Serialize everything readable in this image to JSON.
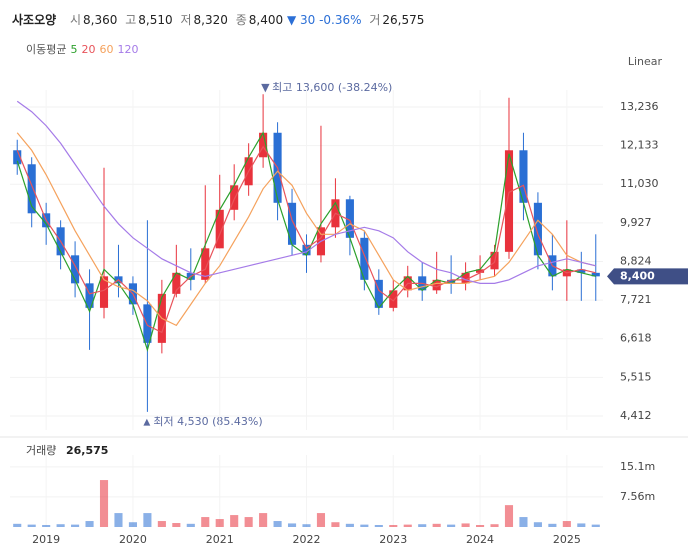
{
  "chart_data": {
    "type": "candlestick",
    "quote": {
      "name": "사조오양",
      "fields": [
        {
          "label": "시",
          "value": "8,360"
        },
        {
          "label": "고",
          "value": "8,510"
        },
        {
          "label": "저",
          "value": "8,320"
        },
        {
          "label": "종",
          "value": "8,400"
        }
      ],
      "change": "▼ 30",
      "change_pct": "-0.36%",
      "volume_label": "거",
      "volume": "26,575"
    },
    "ma_title": "이동평균",
    "scale_label": "Linear",
    "categories": [
      null,
      null,
      "2019",
      null,
      null,
      null,
      null,
      null,
      "2020",
      null,
      null,
      null,
      null,
      null,
      "2021",
      null,
      null,
      null,
      null,
      null,
      "2022",
      null,
      null,
      null,
      null,
      null,
      "2023",
      null,
      null,
      null,
      null,
      null,
      "2024",
      null,
      null,
      null,
      null,
      null,
      "2025",
      null,
      null
    ],
    "open": [
      12000,
      11600,
      10200,
      9800,
      9000,
      8200,
      7500,
      8400,
      8200,
      7600,
      6500,
      7900,
      8500,
      8300,
      9200,
      10300,
      11000,
      11800,
      12500,
      10500,
      9300,
      9000,
      9800,
      10600,
      9500,
      8300,
      7500,
      8000,
      8400,
      8000,
      8300,
      8200,
      8500,
      8600,
      9100,
      12000,
      10500,
      9000,
      8400,
      8600,
      8500
    ],
    "high": [
      12300,
      11800,
      10500,
      10000,
      9400,
      8600,
      11500,
      9300,
      8400,
      10000,
      8300,
      9300,
      9200,
      11000,
      11300,
      11600,
      12200,
      13600,
      12800,
      10900,
      9600,
      12700,
      11200,
      10700,
      9700,
      8600,
      8300,
      8700,
      8800,
      9100,
      9000,
      8800,
      9000,
      9300,
      13500,
      12500,
      10800,
      9600,
      10000,
      9100,
      9600
    ],
    "low": [
      11300,
      9800,
      9300,
      8600,
      7800,
      6300,
      7200,
      7800,
      7300,
      4530,
      6200,
      7800,
      8000,
      8200,
      9200,
      10000,
      10700,
      11500,
      10000,
      9000,
      8500,
      8800,
      9500,
      9000,
      8000,
      7300,
      7400,
      7800,
      7700,
      7900,
      7900,
      8000,
      8300,
      8400,
      8900,
      10000,
      8600,
      8000,
      7700,
      7700,
      7700
    ],
    "close": [
      11600,
      10200,
      9800,
      9000,
      8200,
      7500,
      8400,
      8200,
      7600,
      6500,
      7900,
      8500,
      8300,
      9200,
      10300,
      11000,
      11800,
      12500,
      10500,
      9300,
      9000,
      9800,
      10600,
      9500,
      8300,
      7500,
      8000,
      8400,
      8000,
      8300,
      8200,
      8500,
      8600,
      9100,
      12000,
      10500,
      9000,
      8400,
      8600,
      8500,
      8400
    ],
    "up_color": "#e8323c",
    "down_color": "#2a6fd4",
    "series": [
      {
        "name": "5",
        "color": "#2ca02c",
        "values": [
          11700,
          10400,
          9900,
          9100,
          8300,
          7400,
          8600,
          8200,
          7600,
          6300,
          7800,
          8500,
          8300,
          9300,
          10300,
          11000,
          11800,
          12500,
          10600,
          9300,
          9000,
          9900,
          10500,
          9500,
          8300,
          7500,
          8000,
          8400,
          8000,
          8300,
          8200,
          8500,
          8600,
          9100,
          11900,
          10500,
          9000,
          8400,
          8600,
          8500,
          8400
        ]
      },
      {
        "name": "20",
        "color": "#e8535a",
        "values": [
          12000,
          11000,
          10000,
          9400,
          8700,
          7900,
          8000,
          8300,
          7900,
          7000,
          6800,
          8000,
          8400,
          8600,
          9600,
          10600,
          11400,
          12100,
          11500,
          10000,
          9200,
          9500,
          10200,
          10000,
          9000,
          8000,
          7700,
          8200,
          8200,
          8100,
          8300,
          8300,
          8500,
          8800,
          10800,
          11000,
          9600,
          8700,
          8500,
          8600,
          8500
        ]
      },
      {
        "name": "60",
        "color": "#f5a25d",
        "values": [
          12500,
          12000,
          11300,
          10500,
          9700,
          9000,
          8300,
          8100,
          8000,
          7700,
          7200,
          7000,
          7600,
          8200,
          8700,
          9400,
          10100,
          10900,
          11400,
          11000,
          10200,
          9600,
          9600,
          9900,
          9700,
          9000,
          8300,
          8000,
          8100,
          8200,
          8200,
          8200,
          8300,
          8400,
          8800,
          9400,
          10000,
          9600,
          9000,
          8800,
          8700
        ]
      },
      {
        "name": "120",
        "color": "#a57be8",
        "values": [
          13400,
          13100,
          12700,
          12200,
          11600,
          11000,
          10400,
          9900,
          9500,
          9200,
          8900,
          8700,
          8500,
          8400,
          8500,
          8600,
          8700,
          8800,
          8900,
          9000,
          9100,
          9400,
          9600,
          9700,
          9800,
          9700,
          9500,
          9100,
          8800,
          8600,
          8500,
          8300,
          8200,
          8200,
          8300,
          8500,
          8700,
          8800,
          8900,
          8800,
          8700
        ]
      }
    ],
    "ylim": [
      4012,
      13721
    ],
    "yticks": [
      {
        "value": 4412,
        "label": "4,412"
      },
      {
        "value": 5515,
        "label": "5,515"
      },
      {
        "value": 6618,
        "label": "6,618"
      },
      {
        "value": 7721,
        "label": "7,721"
      },
      {
        "value": 8824,
        "label": "8,824"
      },
      {
        "value": 9927,
        "label": "9,927"
      },
      {
        "value": 11030,
        "label": "11,030"
      },
      {
        "value": 12133,
        "label": "12,133"
      },
      {
        "value": 13236,
        "label": "13,236"
      }
    ],
    "grid": true,
    "last_price": {
      "value": 8400,
      "label": "8,400"
    },
    "annotations": {
      "high": "최고 13,600 (-38.24%)",
      "low": "최저 4,530 (85.43%)"
    },
    "volume": {
      "label": "거래량",
      "value_text": "26,575",
      "values": [
        800000,
        600000,
        500000,
        700000,
        600000,
        1500000,
        11800000,
        3500000,
        1200000,
        3500000,
        1500000,
        1000000,
        800000,
        2500000,
        2000000,
        3000000,
        2500000,
        3500000,
        1500000,
        900000,
        700000,
        3500000,
        1200000,
        800000,
        600000,
        500000,
        500000,
        600000,
        700000,
        800000,
        600000,
        900000,
        500000,
        700000,
        5500000,
        2500000,
        1200000,
        800000,
        1500000,
        900000,
        600000
      ],
      "ylim": [
        0,
        18100000
      ],
      "yticks": [
        {
          "value": 7560000,
          "label": "7.56m"
        },
        {
          "value": 15100000,
          "label": "15.1m"
        }
      ]
    }
  }
}
